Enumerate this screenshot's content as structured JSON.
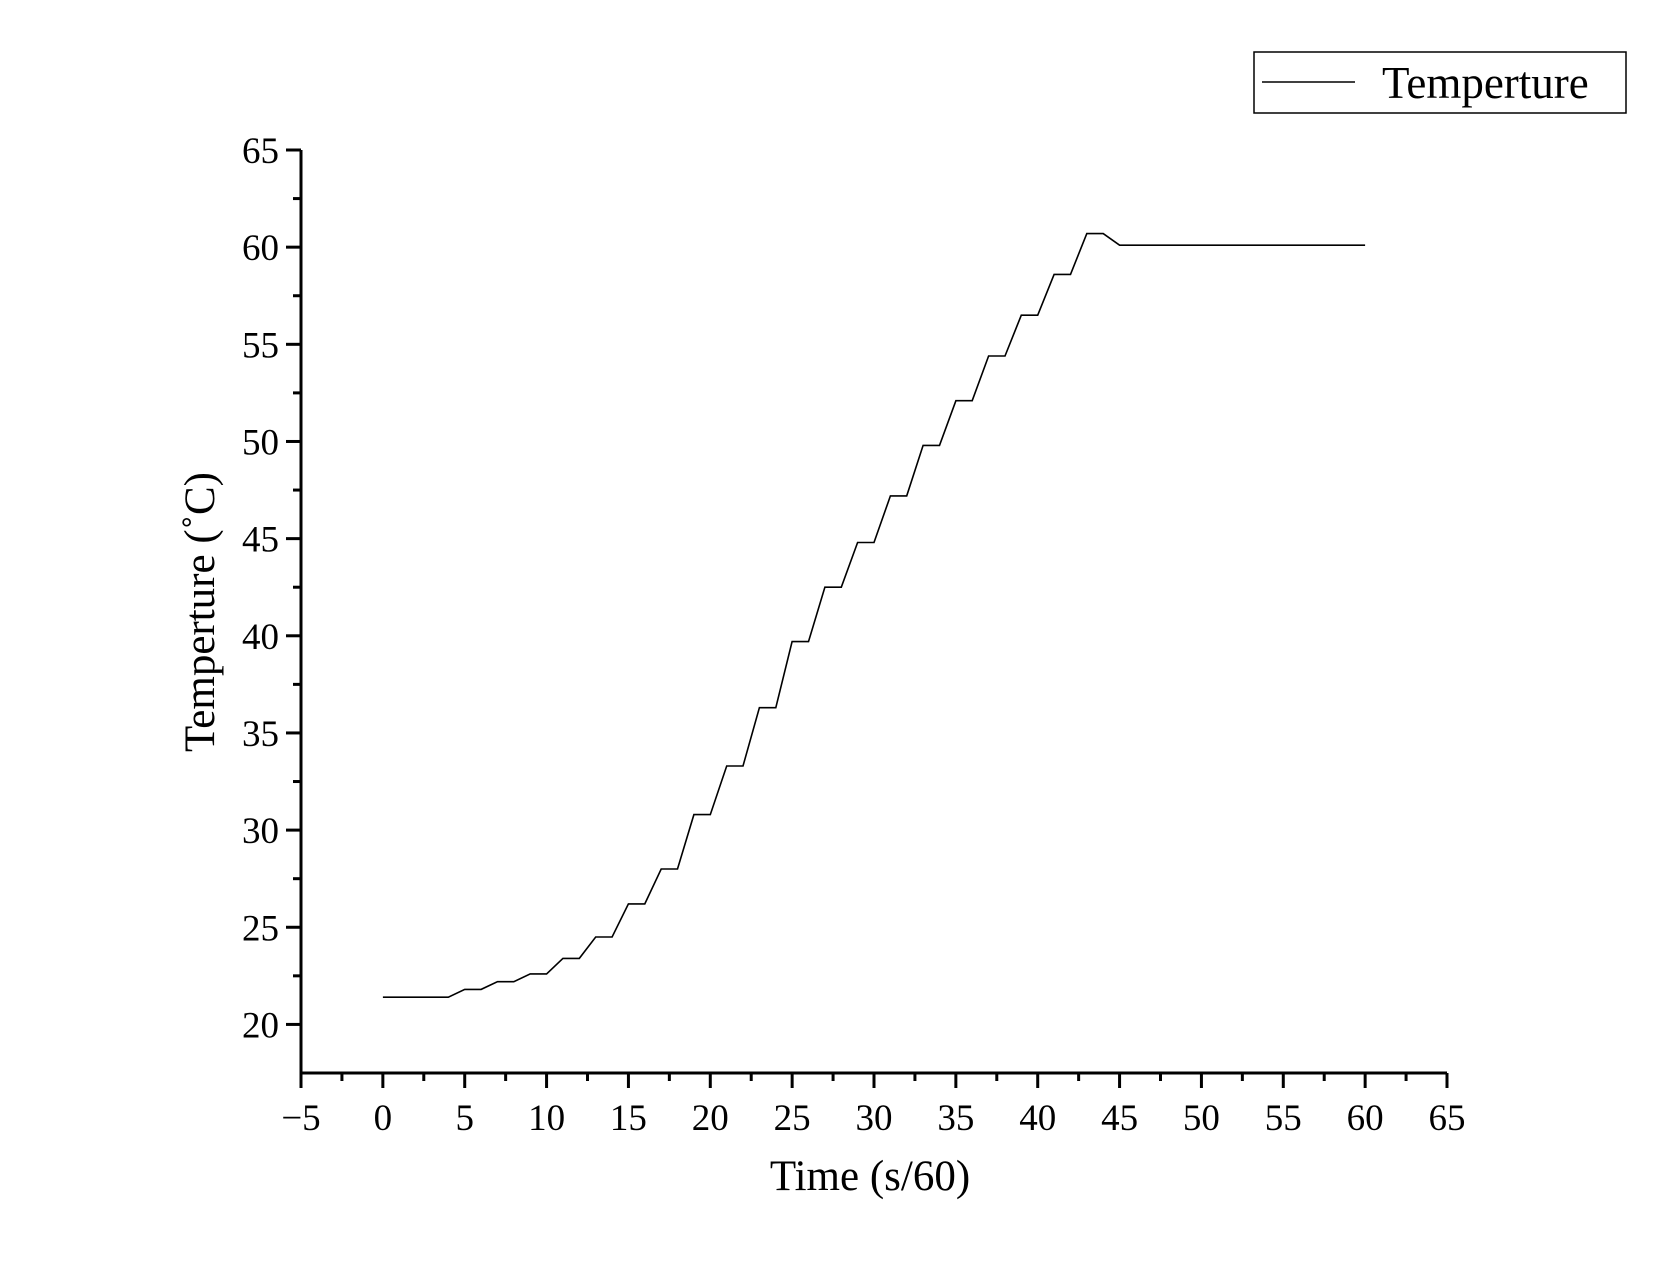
{
  "chart_data": {
    "type": "line",
    "xlabel": "Time (s/60)",
    "ylabel": "Temperture (˚C)",
    "xlim": [
      -5,
      65
    ],
    "ylim": [
      17.5,
      65
    ],
    "x_ticks": [
      -5,
      0,
      5,
      10,
      15,
      20,
      25,
      30,
      35,
      40,
      45,
      50,
      55,
      60,
      65
    ],
    "y_ticks": [
      20,
      25,
      30,
      35,
      40,
      45,
      50,
      55,
      60,
      65
    ],
    "x_tick_labels": [
      "−5",
      "0",
      "5",
      "10",
      "15",
      "20",
      "25",
      "30",
      "35",
      "40",
      "45",
      "50",
      "55",
      "60",
      "65"
    ],
    "y_tick_labels": [
      "20",
      "25",
      "30",
      "35",
      "40",
      "45",
      "50",
      "55",
      "60",
      "65"
    ],
    "grid": false,
    "legend_position": "top-right",
    "series": [
      {
        "name": "Temperture",
        "color": "#000000",
        "points": [
          [
            0,
            21.4
          ],
          [
            4,
            21.4
          ],
          [
            5,
            21.8
          ],
          [
            6,
            21.8
          ],
          [
            7,
            22.2
          ],
          [
            8,
            22.2
          ],
          [
            9,
            22.6
          ],
          [
            10,
            22.6
          ],
          [
            11,
            23.4
          ],
          [
            12,
            23.4
          ],
          [
            13,
            24.5
          ],
          [
            14,
            24.5
          ],
          [
            15,
            26.2
          ],
          [
            16,
            26.2
          ],
          [
            17,
            28.0
          ],
          [
            18,
            28.0
          ],
          [
            19,
            30.8
          ],
          [
            20,
            30.8
          ],
          [
            21,
            33.3
          ],
          [
            22,
            33.3
          ],
          [
            23,
            36.3
          ],
          [
            24,
            36.3
          ],
          [
            25,
            39.7
          ],
          [
            26,
            39.7
          ],
          [
            27,
            42.5
          ],
          [
            28,
            42.5
          ],
          [
            29,
            44.8
          ],
          [
            30,
            44.8
          ],
          [
            31,
            47.2
          ],
          [
            32,
            47.2
          ],
          [
            33,
            49.8
          ],
          [
            34,
            49.8
          ],
          [
            35,
            52.1
          ],
          [
            36,
            52.1
          ],
          [
            37,
            54.4
          ],
          [
            38,
            54.4
          ],
          [
            39,
            56.5
          ],
          [
            40,
            56.5
          ],
          [
            41,
            58.6
          ],
          [
            42,
            58.6
          ],
          [
            43,
            60.7
          ],
          [
            44,
            60.7
          ],
          [
            45,
            60.1
          ],
          [
            60,
            60.1
          ]
        ]
      }
    ]
  }
}
